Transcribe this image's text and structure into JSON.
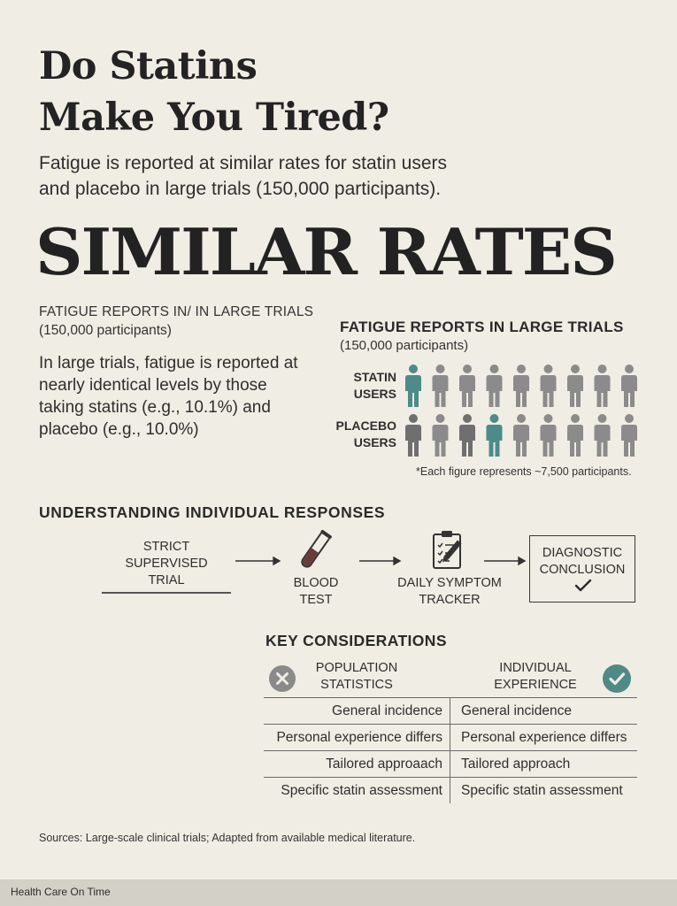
{
  "header": {
    "title_line1": "Do Statins",
    "title_line2": "Make You Tired?",
    "subtitle_line1": "Fatigue is reported at similar rates for statin users",
    "subtitle_line2": "and placebo in large trials (150,000 participants).",
    "headline": "SIMILAR RATES"
  },
  "left_panel": {
    "caption_line1": "FATIGUE REPORTS IN/ IN LARGE TRIALS",
    "caption_line2": "(150,000 participants)",
    "body_line1": "In large trials, fatigue is reported at",
    "body_line2": "nearly identical levels by those",
    "body_line3": "taking statins (e.g., 10.1%) and",
    "body_line4": "placebo (e.g., 10.0%)"
  },
  "pictogram": {
    "title": "FATIGUE REPORTS IN LARGE TRIALS",
    "subtitle": "(150,000 participants)",
    "rows": [
      {
        "label_line1": "STATIN",
        "label_line2": "USERS",
        "highlighted_index": 0,
        "figures": 9
      },
      {
        "label_line1": "PLACEBO",
        "label_line2": "USERS",
        "highlighted_index": 3,
        "figures": 9
      }
    ],
    "note": "*Each figure represents ~7,500 participants.",
    "colors": {
      "highlight": "#4d8a8a",
      "default": "#8b8b8b",
      "dark": "#6f6f6f"
    }
  },
  "individual": {
    "title": "UNDERSTANDING INDIVIDUAL RESPONSES",
    "steps": [
      {
        "line1": "STRICT",
        "line2": "SUPERVISED",
        "line3": "TRIAL"
      },
      {
        "line1": "BLOOD",
        "line2": "TEST",
        "icon": "test-tube-icon"
      },
      {
        "line1": "DAILY SYMPTOM",
        "line2": "TRACKER",
        "icon": "clipboard-icon"
      },
      {
        "line1": "DIAGNOSTIC",
        "line2": "CONCLUSION",
        "icon": "checkmark-icon"
      }
    ]
  },
  "considerations": {
    "title": "KEY CONSIDERATIONS",
    "left_head_line1": "POPULATION",
    "left_head_line2": "STATISTICS",
    "right_head_line1": "INDIVIDUAL",
    "right_head_line2": "EXPERIENCE",
    "left_icon": "x-circle-icon",
    "right_icon": "check-circle-icon",
    "rows": [
      {
        "left": "General incidence",
        "right": "General incidence"
      },
      {
        "left": "Personal experience differs",
        "right": "Personal experience differs"
      },
      {
        "left": "Tailored approаach",
        "right": "Tailored approach"
      },
      {
        "left": "Specific statin assessment",
        "right": "Specific statin assessment"
      }
    ]
  },
  "sources": "Sources: Large-scale clinical trials; Adapted from available medical literature.",
  "footer": "Health Care On Time"
}
